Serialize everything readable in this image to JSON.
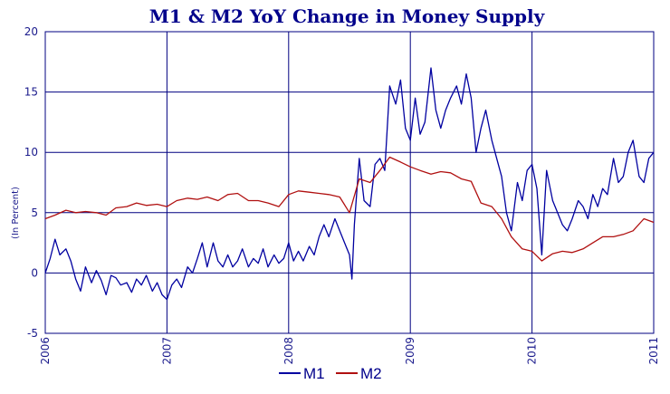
{
  "chart_data": {
    "type": "line",
    "title": "M1 & M2 YoY Change in Money Supply",
    "ylabel": "(In Percent)",
    "xlabel": "",
    "ylim": [
      -5,
      20
    ],
    "yticks": [
      "20",
      "15",
      "10",
      "5",
      "0",
      "-5"
    ],
    "xlim": [
      "2006",
      "2011"
    ],
    "xticks": [
      "2006",
      "2007",
      "2008",
      "2009",
      "2010",
      "2011"
    ],
    "grid": true,
    "legend": "bottom-center",
    "colors": {
      "M1": "#0000a0",
      "M2": "#b01010",
      "grid": "#000080",
      "text": "#00008b"
    },
    "series": [
      {
        "name": "M1",
        "x": [
          2006.0,
          2006.04,
          2006.08,
          2006.12,
          2006.17,
          2006.21,
          2006.25,
          2006.29,
          2006.33,
          2006.38,
          2006.42,
          2006.46,
          2006.5,
          2006.54,
          2006.58,
          2006.62,
          2006.67,
          2006.71,
          2006.75,
          2006.79,
          2006.83,
          2006.88,
          2006.92,
          2006.96,
          2007.0,
          2007.04,
          2007.08,
          2007.12,
          2007.17,
          2007.21,
          2007.25,
          2007.29,
          2007.33,
          2007.38,
          2007.42,
          2007.46,
          2007.5,
          2007.54,
          2007.58,
          2007.62,
          2007.67,
          2007.71,
          2007.75,
          2007.79,
          2007.83,
          2007.88,
          2007.92,
          2007.96,
          2008.0,
          2008.04,
          2008.08,
          2008.12,
          2008.17,
          2008.21,
          2008.25,
          2008.29,
          2008.33,
          2008.38,
          2008.42,
          2008.46,
          2008.5,
          2008.52,
          2008.54,
          2008.58,
          2008.62,
          2008.67,
          2008.71,
          2008.75,
          2008.79,
          2008.83,
          2008.88,
          2008.92,
          2008.96,
          2009.0,
          2009.04,
          2009.08,
          2009.12,
          2009.17,
          2009.21,
          2009.25,
          2009.29,
          2009.33,
          2009.38,
          2009.42,
          2009.46,
          2009.5,
          2009.54,
          2009.58,
          2009.62,
          2009.67,
          2009.71,
          2009.75,
          2009.79,
          2009.83,
          2009.88,
          2009.92,
          2009.96,
          2010.0,
          2010.04,
          2010.08,
          2010.12,
          2010.17,
          2010.21,
          2010.25,
          2010.29,
          2010.33,
          2010.38,
          2010.42,
          2010.46,
          2010.5,
          2010.54,
          2010.58,
          2010.62,
          2010.67,
          2010.71,
          2010.75,
          2010.79,
          2010.83,
          2010.88,
          2010.92,
          2010.96,
          2011.0
        ],
        "values": [
          0.0,
          1.2,
          2.8,
          1.5,
          2.0,
          1.0,
          -0.5,
          -1.5,
          0.5,
          -0.8,
          0.2,
          -0.6,
          -1.8,
          -0.2,
          -0.4,
          -1.0,
          -0.8,
          -1.6,
          -0.5,
          -1.0,
          -0.2,
          -1.5,
          -0.8,
          -1.8,
          -2.2,
          -1.0,
          -0.5,
          -1.2,
          0.5,
          0.0,
          1.2,
          2.5,
          0.5,
          2.5,
          1.0,
          0.5,
          1.5,
          0.5,
          1.0,
          2.0,
          0.5,
          1.2,
          0.8,
          2.0,
          0.5,
          1.5,
          0.8,
          1.2,
          2.5,
          1.0,
          1.8,
          1.0,
          2.2,
          1.5,
          3.0,
          4.0,
          3.0,
          4.5,
          3.5,
          2.5,
          1.5,
          -0.5,
          4.0,
          9.5,
          6.0,
          5.5,
          9.0,
          9.5,
          8.5,
          15.5,
          14.0,
          16.0,
          12.0,
          11.0,
          14.5,
          11.5,
          12.5,
          17.0,
          13.5,
          12.0,
          13.5,
          14.5,
          15.5,
          14.0,
          16.5,
          14.5,
          10.0,
          12.0,
          13.5,
          11.0,
          9.5,
          8.0,
          5.0,
          3.5,
          7.5,
          6.0,
          8.5,
          9.0,
          7.0,
          1.5,
          8.5,
          6.0,
          5.0,
          4.0,
          3.5,
          4.5,
          6.0,
          5.5,
          4.5,
          6.5,
          5.5,
          7.0,
          6.5,
          9.5,
          7.5,
          8.0,
          10.0,
          11.0,
          8.0,
          7.5,
          9.5,
          10.0
        ]
      },
      {
        "name": "M2",
        "x": [
          2006.0,
          2006.08,
          2006.17,
          2006.25,
          2006.33,
          2006.42,
          2006.5,
          2006.58,
          2006.67,
          2006.75,
          2006.83,
          2006.92,
          2007.0,
          2007.08,
          2007.17,
          2007.25,
          2007.33,
          2007.42,
          2007.5,
          2007.58,
          2007.67,
          2007.75,
          2007.83,
          2007.92,
          2008.0,
          2008.08,
          2008.17,
          2008.25,
          2008.33,
          2008.42,
          2008.5,
          2008.58,
          2008.67,
          2008.75,
          2008.83,
          2008.92,
          2009.0,
          2009.08,
          2009.17,
          2009.25,
          2009.33,
          2009.42,
          2009.5,
          2009.58,
          2009.67,
          2009.75,
          2009.83,
          2009.92,
          2010.0,
          2010.08,
          2010.17,
          2010.25,
          2010.33,
          2010.42,
          2010.5,
          2010.58,
          2010.67,
          2010.75,
          2010.83,
          2010.92,
          2011.0
        ],
        "values": [
          4.5,
          4.8,
          5.2,
          5.0,
          5.1,
          5.0,
          4.8,
          5.4,
          5.5,
          5.8,
          5.6,
          5.7,
          5.5,
          6.0,
          6.2,
          6.1,
          6.3,
          6.0,
          6.5,
          6.6,
          6.0,
          6.0,
          5.8,
          5.5,
          6.5,
          6.8,
          6.7,
          6.6,
          6.5,
          6.3,
          5.0,
          7.8,
          7.5,
          8.5,
          9.6,
          9.2,
          8.8,
          8.5,
          8.2,
          8.4,
          8.3,
          7.8,
          7.6,
          5.8,
          5.5,
          4.5,
          3.0,
          2.0,
          1.8,
          1.0,
          1.6,
          1.8,
          1.7,
          2.0,
          2.5,
          3.0,
          3.0,
          3.2,
          3.5,
          4.5,
          4.2
        ]
      }
    ]
  }
}
